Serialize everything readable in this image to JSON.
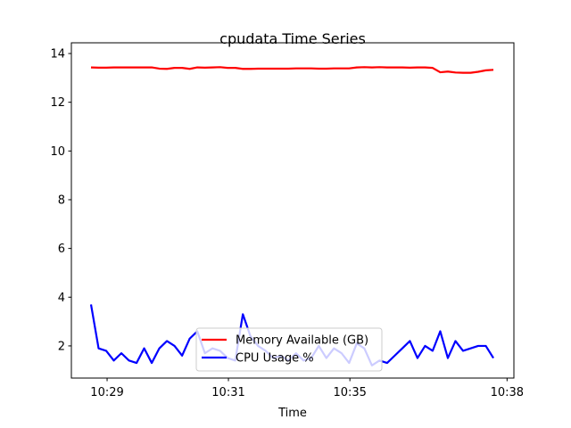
{
  "chart_data": {
    "type": "line",
    "title": "cpudata Time Series",
    "xlabel": "Time",
    "x": [
      0,
      1,
      2,
      3,
      4,
      5,
      6,
      7,
      8,
      9,
      10,
      11,
      12,
      13,
      14,
      15,
      16,
      17,
      18,
      19,
      20,
      21,
      22,
      23,
      24,
      25,
      26,
      27,
      28,
      29,
      30,
      31,
      32,
      33,
      34,
      35,
      36,
      37,
      38,
      39,
      40,
      41,
      42,
      43,
      44,
      45,
      46,
      47,
      48,
      49,
      50,
      51,
      52,
      53
    ],
    "series": [
      {
        "name": "Memory Available (GB)",
        "color": "#ff0000",
        "values": [
          13.43,
          13.42,
          13.42,
          13.43,
          13.43,
          13.43,
          13.43,
          13.43,
          13.43,
          13.38,
          13.37,
          13.41,
          13.41,
          13.37,
          13.43,
          13.42,
          13.43,
          13.44,
          13.41,
          13.41,
          13.37,
          13.37,
          13.38,
          13.38,
          13.38,
          13.38,
          13.38,
          13.39,
          13.39,
          13.39,
          13.38,
          13.38,
          13.39,
          13.39,
          13.39,
          13.43,
          13.44,
          13.43,
          13.44,
          13.43,
          13.43,
          13.43,
          13.42,
          13.43,
          13.43,
          13.41,
          13.23,
          13.26,
          13.22,
          13.21,
          13.21,
          13.25,
          13.31,
          13.33
        ]
      },
      {
        "name": "CPU Usage %",
        "color": "#0000ff",
        "values": [
          3.7,
          1.9,
          1.8,
          1.4,
          1.7,
          1.4,
          1.3,
          1.9,
          1.3,
          1.9,
          2.2,
          2.0,
          1.6,
          2.3,
          2.6,
          1.7,
          1.9,
          1.8,
          1.5,
          1.4,
          3.3,
          2.4,
          2.0,
          1.8,
          1.5,
          1.6,
          1.4,
          1.7,
          1.4,
          1.5,
          2.0,
          1.5,
          1.9,
          1.7,
          1.3,
          2.1,
          1.9,
          1.2,
          1.4,
          1.3,
          1.6,
          1.9,
          2.2,
          1.5,
          2.0,
          1.8,
          2.6,
          1.5,
          2.2,
          1.8,
          1.9,
          2.0,
          2.0,
          1.5
        ]
      }
    ],
    "xlim": [
      -2.585,
      55.7
    ],
    "xticks": [
      {
        "value": 2.12,
        "label": "10:29"
      },
      {
        "value": 18.1,
        "label": "10:31"
      },
      {
        "value": 34.1,
        "label": "10:35"
      },
      {
        "value": 54.8,
        "label": "10:38"
      }
    ],
    "ylim": [
      0.68,
      14.44
    ],
    "yticks": [
      2,
      4,
      6,
      8,
      10,
      12,
      14
    ],
    "legend": "lower center"
  }
}
